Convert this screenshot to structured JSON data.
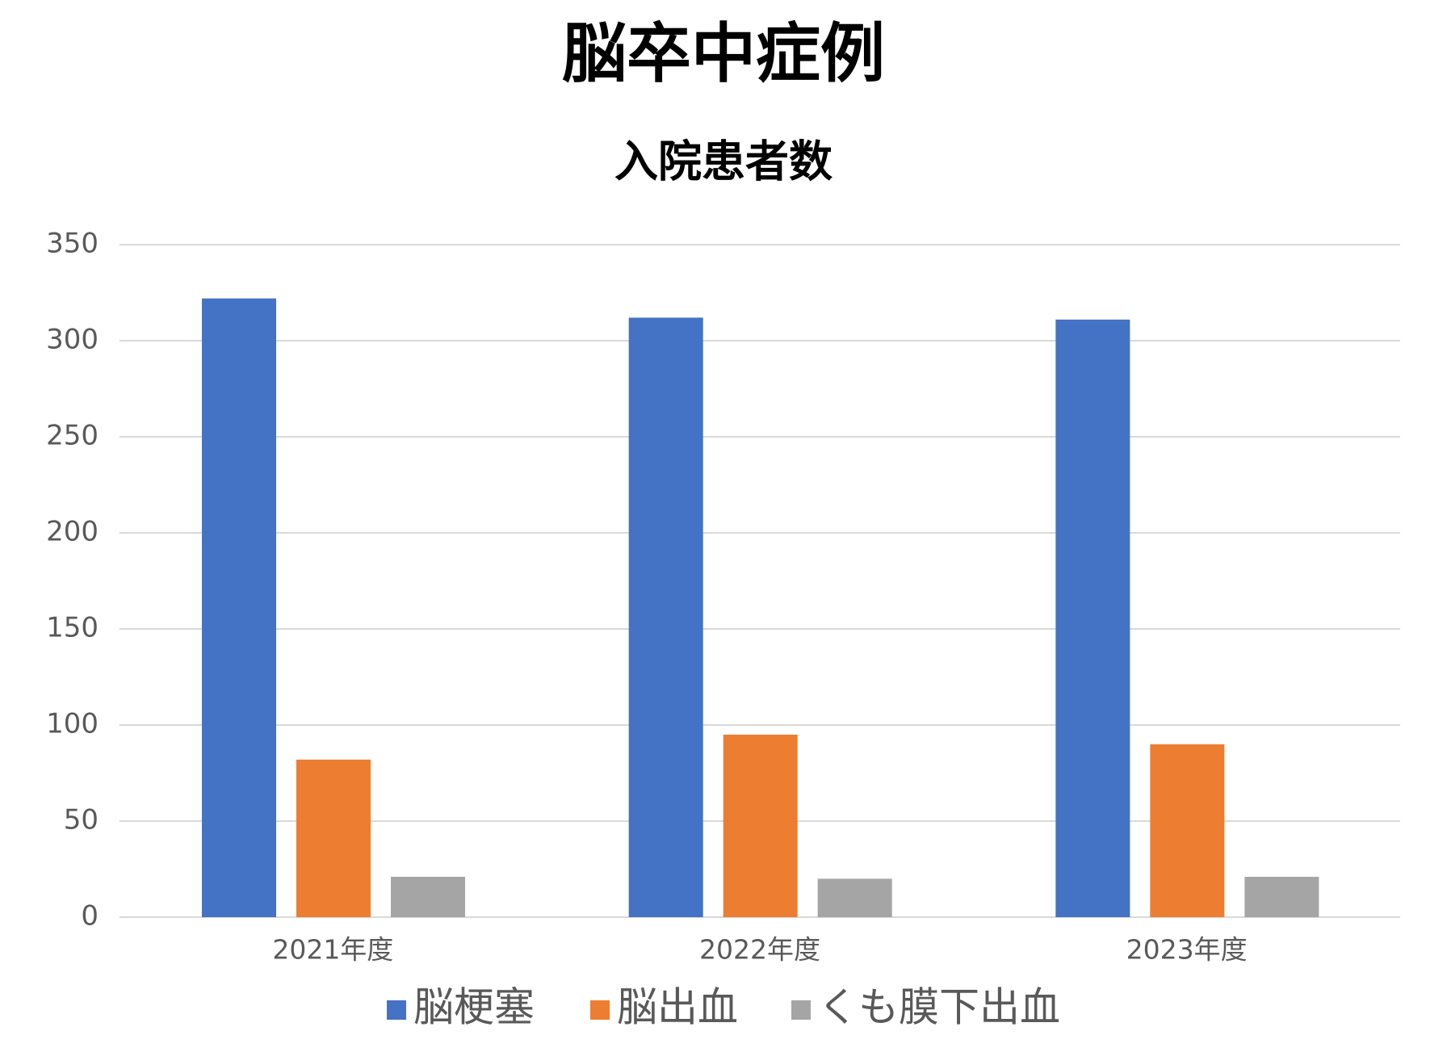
{
  "chart_data": {
    "type": "bar",
    "title": "脳卒中症例",
    "subtitle": "入院患者数",
    "categories": [
      "2021年度",
      "2022年度",
      "2023年度"
    ],
    "series": [
      {
        "name": "脳梗塞",
        "color": "#4472c4",
        "values": [
          322,
          312,
          311
        ]
      },
      {
        "name": "脳出血",
        "color": "#ed7d31",
        "values": [
          82,
          95,
          90
        ]
      },
      {
        "name": "くも膜下出血",
        "color": "#a5a5a5",
        "values": [
          21,
          20,
          21
        ]
      }
    ],
    "ylim": [
      0,
      350
    ],
    "yticks": [
      0,
      50,
      100,
      150,
      200,
      250,
      300,
      350
    ],
    "grid": true,
    "legend": "bottom"
  }
}
